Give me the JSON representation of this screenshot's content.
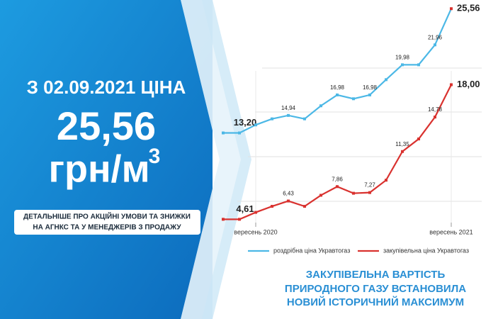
{
  "header": {
    "line1": "З 02.09.2021 ЦІНА",
    "price": "25,56",
    "unit": "грн/м",
    "unit_power": "3",
    "note_lines": [
      "ДЕТАЛЬНІШЕ ПРО АКЦІЙНІ УМОВИ ТА ЗНИЖКИ",
      "НА АГНКС ТА У МЕНЕДЖЕРІВ З ПРОДАЖУ"
    ]
  },
  "chart_data": {
    "type": "line",
    "categories": [
      null,
      null,
      "вересень 2020",
      null,
      null,
      null,
      null,
      null,
      null,
      null,
      null,
      null,
      null,
      null,
      "вересень 2021"
    ],
    "series": [
      {
        "name": "роздрібна ціна Укравтогаз",
        "color": "#4cb8e6",
        "values": [
          13.2,
          13.2,
          14.0,
          14.6,
          14.94,
          14.6,
          15.9,
          16.98,
          16.6,
          16.98,
          18.5,
          19.98,
          19.98,
          21.96,
          25.56
        ],
        "value_labels": [
          null,
          "13,20",
          null,
          null,
          "14,94",
          null,
          null,
          "16,98",
          null,
          "16,98",
          null,
          "19,98",
          null,
          "21,96",
          "25,56"
        ]
      },
      {
        "name": "закупівельна ціна Укравтогаз",
        "color": "#d9322f",
        "values": [
          4.61,
          4.61,
          5.3,
          5.9,
          6.43,
          5.9,
          7.0,
          7.86,
          7.2,
          7.27,
          8.5,
          11.35,
          12.6,
          14.78,
          18.0
        ],
        "value_labels": [
          null,
          "4,61",
          null,
          null,
          "6,43",
          null,
          null,
          "7,86",
          null,
          "7,27",
          null,
          "11,35",
          null,
          "14,78",
          "18,00"
        ]
      }
    ],
    "ylim": [
      4,
      26
    ]
  },
  "footer": {
    "lines": [
      "ЗАКУПІВЕЛЬНА ВАРТІСТЬ",
      "ПРИРОДНОГО ГАЗУ ВСТАНОВИЛА",
      "НОВИЙ ІСТОРИЧНИЙ МАКСИМУМ"
    ]
  }
}
